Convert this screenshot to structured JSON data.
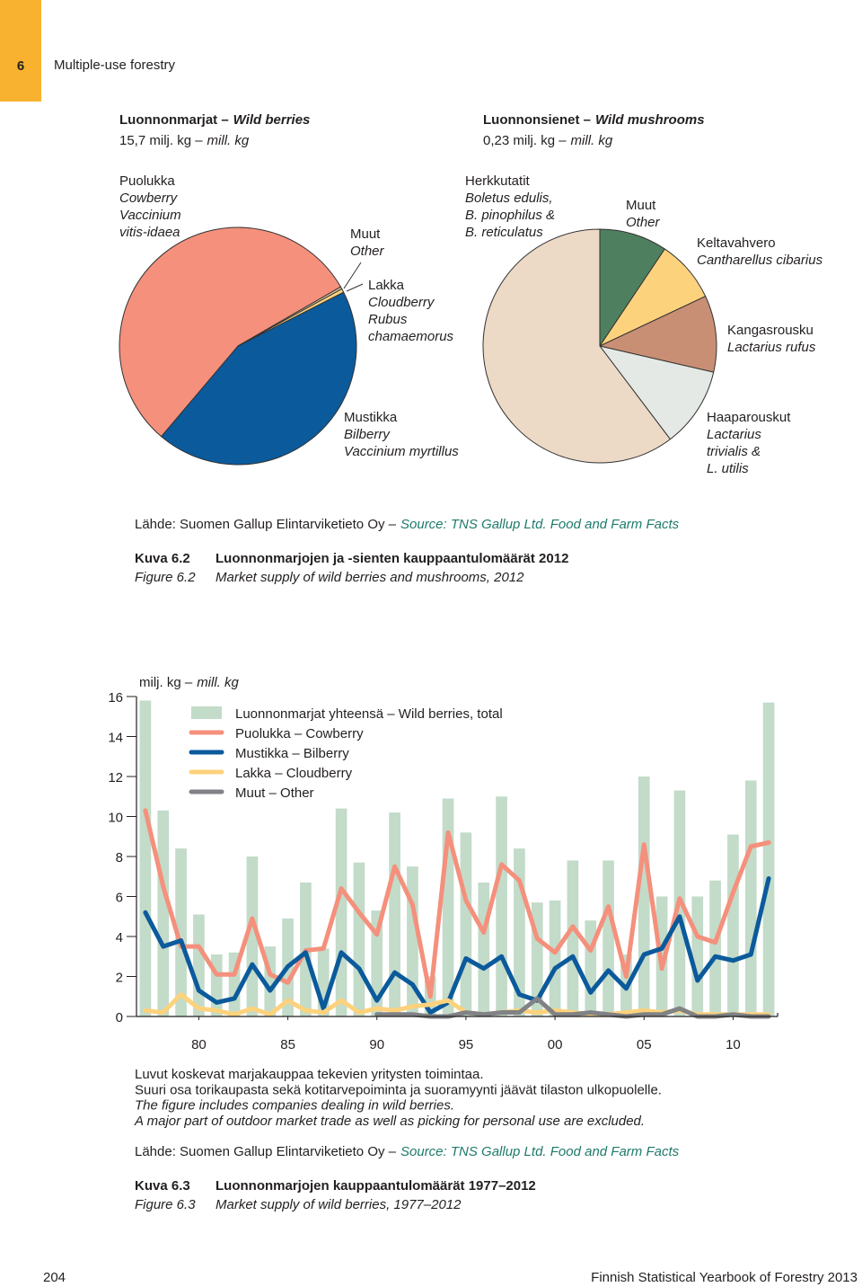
{
  "document": {
    "header": {
      "chapter": "6",
      "title": "Multiple-use forestry"
    },
    "figure_6_2": {
      "source": {
        "fi": "Lähde: Suomen Gallup Elintarviketieto Oy –",
        "en": "Source: TNS Gallup Ltd. Food and Farm Facts"
      },
      "caption": {
        "label_fi": "Kuva 6.2",
        "title_fi": "Luonnonmarjojen ja -sienten kauppaantulomäärät 2012",
        "label_en": "Figure 6.2",
        "title_en": "Market supply of wild berries and mushrooms, 2012"
      }
    },
    "figure_6_3": {
      "notes": [
        "Luvut koskevat marjakauppaa tekevien yritysten toimintaa.",
        "Suuri osa torikaupasta sekä kotitarvepoiminta ja suoramyynti jäävät tilaston ulkopuolelle.",
        "The figure includes companies dealing in wild berries.",
        "A major part of outdoor market trade as well as picking for personal use are excluded."
      ],
      "source": {
        "fi": "Lähde: Suomen Gallup Elintarviketieto Oy –",
        "en": "Source: TNS Gallup Ltd. Food and Farm Facts"
      },
      "caption": {
        "label_fi": "Kuva 6.3",
        "title_fi": "Luonnonmarjojen kauppaantulomäärät 1977–2012",
        "label_en": "Figure 6.3",
        "title_en": "Market supply of wild berries, 1977–2012"
      }
    },
    "footer": {
      "page": "204",
      "publication": "Finnish Statistical Yearbook of Forestry 2013"
    }
  },
  "chart_data": [
    {
      "type": "pie",
      "title": {
        "fi": "Luonnonmarjat –",
        "en": "Wild berries"
      },
      "subtitle": {
        "fi": "15,7 milj. kg –",
        "en": "mill. kg"
      },
      "categories": [
        [
          "Mustikka",
          "Bilberry",
          "Vaccinium myrtillus"
        ],
        [
          "Puolukka",
          "Cowberry",
          "Vaccinium",
          "vitis-idaea"
        ],
        [
          "Muut",
          "Other"
        ],
        [
          "Lakka",
          "Cloudberry",
          "Rubus",
          "chamaemorus"
        ]
      ],
      "values": [
        43.7,
        55.5,
        0.3,
        0.5
      ],
      "colors": [
        "#0b5a9c",
        "#f4907c",
        "#e9c8a6",
        "#fdd27c"
      ]
    },
    {
      "type": "pie",
      "title": {
        "fi": "Luonnonsienet –",
        "en": "Wild mushrooms"
      },
      "subtitle": {
        "fi": "0,23 milj. kg –",
        "en": "mill. kg"
      },
      "categories": [
        [
          "Muut",
          "Other"
        ],
        [
          "Keltavahvero",
          "Cantharellus cibarius"
        ],
        [
          "Kangasrousku",
          "Lactarius rufus"
        ],
        [
          "Haaparouskut",
          "Lactarius",
          "trivialis &",
          "L. utilis"
        ],
        [
          "Herkkutatit",
          "Boletus edulis,",
          "B. pinophilus &",
          "B. reticulatus"
        ]
      ],
      "values": [
        9.4,
        8.6,
        10.6,
        11.1,
        60.3
      ],
      "colors": [
        "#4e7f5f",
        "#fdd27c",
        "#c98f74",
        "#e4e9e5",
        "#ecd9c6"
      ]
    },
    {
      "type": "bar-line",
      "y_label": {
        "fi": "milj. kg –",
        "en": "mill. kg"
      },
      "x": [
        1977,
        1978,
        1979,
        1980,
        1981,
        1982,
        1983,
        1984,
        1985,
        1986,
        1987,
        1988,
        1989,
        1990,
        1991,
        1992,
        1993,
        1994,
        1995,
        1996,
        1997,
        1998,
        1999,
        2000,
        2001,
        2002,
        2003,
        2004,
        2005,
        2006,
        2007,
        2008,
        2009,
        2010,
        2011,
        2012
      ],
      "xlim": [
        1976.5,
        2012.5
      ],
      "xticks": [
        {
          "value": 1980,
          "label": "80"
        },
        {
          "value": 1985,
          "label": "85"
        },
        {
          "value": 1990,
          "label": "90"
        },
        {
          "value": 1995,
          "label": "95"
        },
        {
          "value": 2000,
          "label": "00"
        },
        {
          "value": 2005,
          "label": "05"
        },
        {
          "value": 2010,
          "label": "10"
        }
      ],
      "ylim": [
        0,
        16
      ],
      "yticks": [
        0,
        2,
        4,
        6,
        8,
        10,
        12,
        14,
        16
      ],
      "series": [
        {
          "name": "Luonnonmarjat yhteensä – Wild berries, total",
          "type": "bar",
          "color": "#c3dbc9",
          "values": [
            15.8,
            10.3,
            8.4,
            5.1,
            3.1,
            3.2,
            8.0,
            3.5,
            4.9,
            6.7,
            3.4,
            10.4,
            7.7,
            5.3,
            10.2,
            7.5,
            2.0,
            10.9,
            9.2,
            6.7,
            11.0,
            8.4,
            5.7,
            5.8,
            7.8,
            4.8,
            7.8,
            3.1,
            12.0,
            6.0,
            11.3,
            6.0,
            6.8,
            9.1,
            11.8,
            15.7
          ]
        },
        {
          "name": "Puolukka – Cowberry",
          "type": "line",
          "color": "#f4907c",
          "values": [
            10.3,
            6.5,
            3.5,
            3.5,
            2.1,
            2.1,
            4.9,
            2.1,
            1.7,
            3.3,
            3.4,
            6.4,
            5.2,
            4.1,
            7.5,
            5.6,
            1.0,
            9.2,
            5.8,
            4.2,
            7.6,
            6.8,
            3.9,
            3.2,
            4.5,
            3.3,
            5.5,
            2.0,
            8.6,
            2.4,
            5.9,
            4.0,
            3.7,
            6.2,
            8.5,
            8.7
          ]
        },
        {
          "name": "Mustikka – Bilberry",
          "type": "line",
          "color": "#0b5a9c",
          "values": [
            5.2,
            3.5,
            3.8,
            1.3,
            0.7,
            0.9,
            2.6,
            1.3,
            2.5,
            3.2,
            0.4,
            3.2,
            2.4,
            0.8,
            2.2,
            1.6,
            0.2,
            0.7,
            2.9,
            2.4,
            3.0,
            1.1,
            0.8,
            2.4,
            3.0,
            1.2,
            2.3,
            1.4,
            3.1,
            3.4,
            5.0,
            1.8,
            3.0,
            2.8,
            3.1,
            6.9
          ]
        },
        {
          "name": "Lakka – Cloudberry",
          "type": "line",
          "color": "#fdd27c",
          "values": [
            0.3,
            0.2,
            1.1,
            0.4,
            0.3,
            0.1,
            0.4,
            0.1,
            0.8,
            0.3,
            0.2,
            0.8,
            0.2,
            0.4,
            0.3,
            0.5,
            0.6,
            0.8,
            0.2,
            0.1,
            0.2,
            0.3,
            0.2,
            0.3,
            0.2,
            0.1,
            0.1,
            0.2,
            0.3,
            0.2,
            0.3,
            0.1,
            0.1,
            0.1,
            0.1,
            0.1
          ]
        },
        {
          "name": "Muut – Other",
          "type": "line",
          "color": "#808285",
          "values": [
            null,
            null,
            null,
            null,
            null,
            null,
            null,
            null,
            null,
            null,
            null,
            null,
            null,
            0.1,
            0.1,
            0.1,
            0.0,
            0.0,
            0.2,
            0.1,
            0.2,
            0.2,
            0.9,
            0.1,
            0.1,
            0.2,
            0.1,
            0.0,
            0.1,
            0.1,
            0.4,
            0.0,
            0.0,
            0.1,
            0.0,
            0.0
          ]
        }
      ]
    }
  ]
}
